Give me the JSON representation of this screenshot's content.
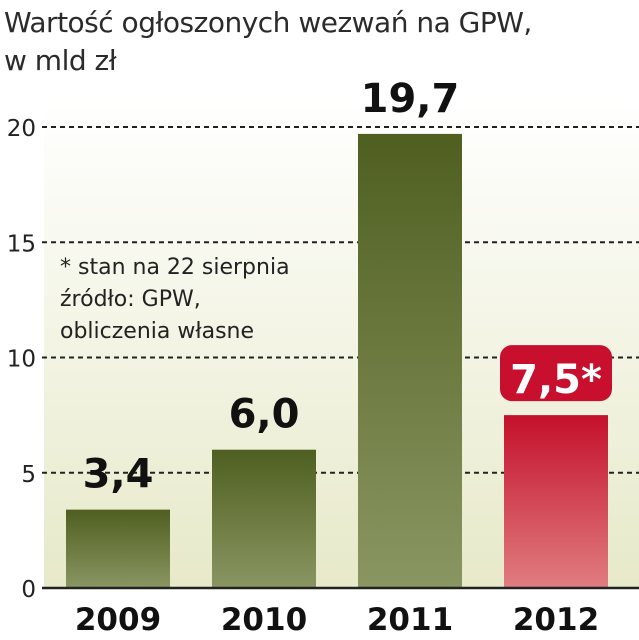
{
  "chart_data": {
    "type": "bar",
    "title_lines": [
      "Wartość ogłoszonych wezwań na GPW,",
      "w mld zł"
    ],
    "categories": [
      "2009",
      "2010",
      "2011",
      "2012"
    ],
    "values": [
      3.4,
      6.0,
      19.7,
      7.5
    ],
    "value_labels": [
      "3,4",
      "6,0",
      "19,7",
      "7,5*"
    ],
    "highlight_index": 3,
    "yticks": [
      "0",
      "5",
      "10",
      "15",
      "20"
    ],
    "ylim": [
      0,
      20
    ],
    "grid": true,
    "notes": [
      "* stan na 22 sierpnia",
      "źródło: GPW,",
      "obliczenia własne"
    ],
    "colors": {
      "bar_top": "#4f5f20",
      "bar_bottom": "#8a9662",
      "highlight_top": "#c4102b",
      "highlight_bottom": "#e07d80",
      "background_top": "#ffffff",
      "background_bottom": "#e7e9c9",
      "highlight_label_bg": "#c8102e"
    }
  }
}
